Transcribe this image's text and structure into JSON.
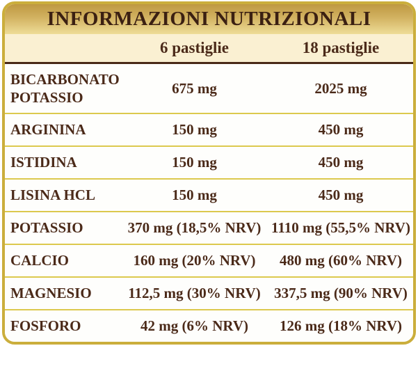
{
  "title": "INFORMAZIONI NUTRIZIONALI",
  "columns": {
    "dose6": "6 pastiglie",
    "dose18": "18 pastiglie"
  },
  "rows": [
    {
      "label": "BICARBONATO POTASSIO",
      "dose6": "675 mg",
      "dose18": "2025 mg"
    },
    {
      "label": "ARGININA",
      "dose6": "150 mg",
      "dose18": "450 mg"
    },
    {
      "label": "ISTIDINA",
      "dose6": "150 mg",
      "dose18": "450 mg"
    },
    {
      "label": "LISINA HCL",
      "dose6": "150 mg",
      "dose18": "450 mg"
    },
    {
      "label": "POTASSIO",
      "dose6": "370 mg (18,5% NRV)",
      "dose18": "1110 mg (55,5% NRV)"
    },
    {
      "label": "CALCIO",
      "dose6": "160 mg (20% NRV)",
      "dose18": "480 mg (60% NRV)"
    },
    {
      "label": "MAGNESIO",
      "dose6": "112,5 mg (30% NRV)",
      "dose18": "337,5 mg (90% NRV)"
    },
    {
      "label": "FOSFORO",
      "dose6": "42 mg (6% NRV)",
      "dose18": "126 mg (18% NRV)"
    }
  ],
  "colors": {
    "border_gold": "#CBAE3C",
    "separator_gold": "#DCC94E",
    "header_gradient_top": "#BE9841",
    "header_gradient_bottom": "#EEDD98",
    "subheader_cream": "#FAF0D2",
    "row_background": "#FEFEFC",
    "text_brown": "#4B2A19",
    "title_brown": "#3B2012",
    "dark_rule_brown": "#4A2A18"
  }
}
